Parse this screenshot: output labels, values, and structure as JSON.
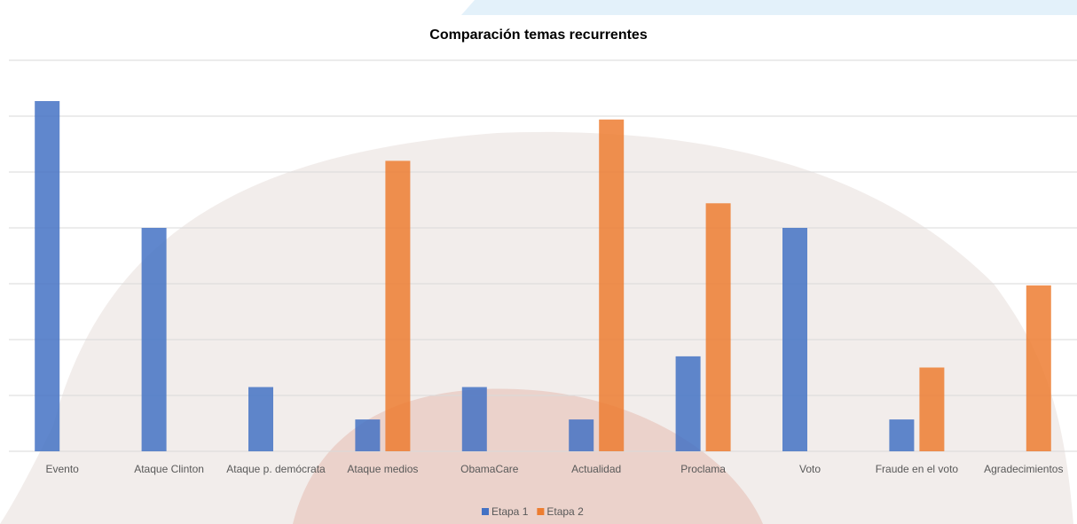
{
  "chart_data": {
    "type": "bar",
    "title": "Comparación temas recurrentes",
    "categories": [
      "Evento",
      "Ataque Clinton",
      "Ataque p. demócrata",
      "Ataque medios",
      "ObamaCare",
      "Actualidad",
      "Proclama",
      "Voto",
      "Fraude en el voto",
      "Agradecimientos"
    ],
    "series": [
      {
        "name": "Etapa 1",
        "color": "#4472c4",
        "values": [
          6.27,
          4.0,
          1.15,
          0.57,
          1.15,
          0.57,
          1.7,
          4.0,
          0.57,
          null
        ]
      },
      {
        "name": "Etapa 2",
        "color": "#ed7d31",
        "values": [
          null,
          null,
          null,
          5.2,
          null,
          5.94,
          4.44,
          null,
          1.5,
          2.97
        ]
      }
    ],
    "ylim": [
      0,
      7
    ],
    "yticks": [
      0,
      1,
      2,
      3,
      4,
      5,
      6,
      7
    ],
    "grid": true,
    "legend": "bottom"
  }
}
